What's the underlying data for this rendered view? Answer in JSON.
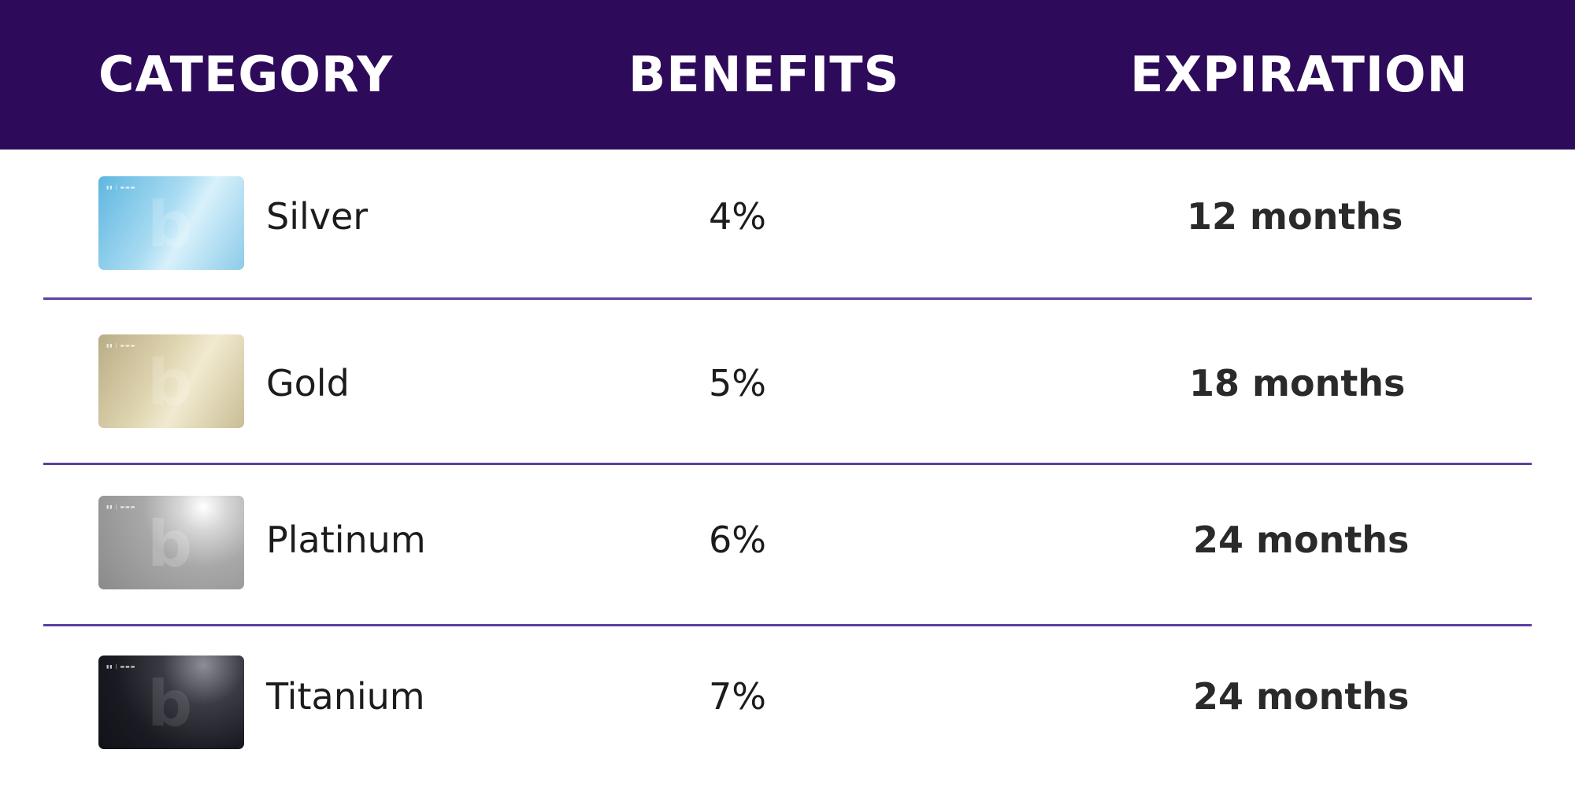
{
  "header": {
    "category": "CATEGORY",
    "benefits": "BENEFITS",
    "expiration": "EXPIRATION"
  },
  "colors": {
    "header_bg": "#2e0a5a",
    "divider": "#5d3ea3"
  },
  "rows": [
    {
      "category": "Silver",
      "benefit": "4%",
      "expiration_num": "12",
      "expiration_unit": "months",
      "card_icon": "silver-card-icon"
    },
    {
      "category": "Gold",
      "benefit": "5%",
      "expiration_num": "18",
      "expiration_unit": "months",
      "card_icon": "gold-card-icon"
    },
    {
      "category": "Platinum",
      "benefit": "6%",
      "expiration_num": "24",
      "expiration_unit": "months",
      "card_icon": "platinum-card-icon"
    },
    {
      "category": "Titanium",
      "benefit": "7%",
      "expiration_num": "24",
      "expiration_unit": "months",
      "card_icon": "titanium-card-icon"
    }
  ]
}
